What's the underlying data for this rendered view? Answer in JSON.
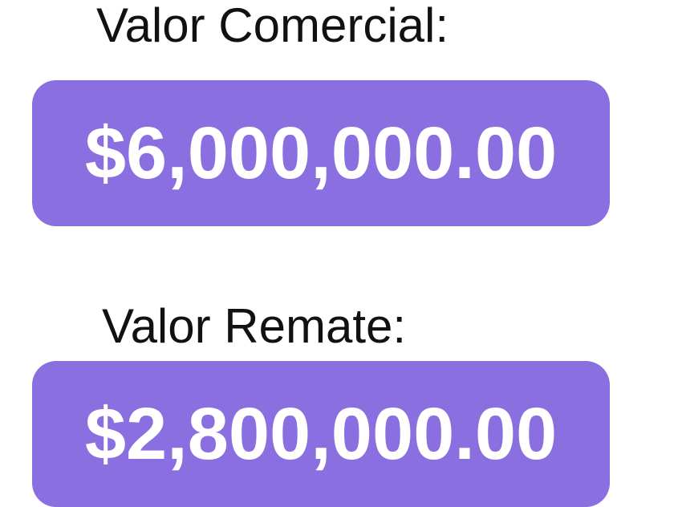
{
  "accent_color": "#8a6fe0",
  "items": [
    {
      "label": "Valor Comercial:",
      "value": "$6,000,000.00"
    },
    {
      "label": "Valor Remate:",
      "value": "$2,800,000.00"
    }
  ]
}
